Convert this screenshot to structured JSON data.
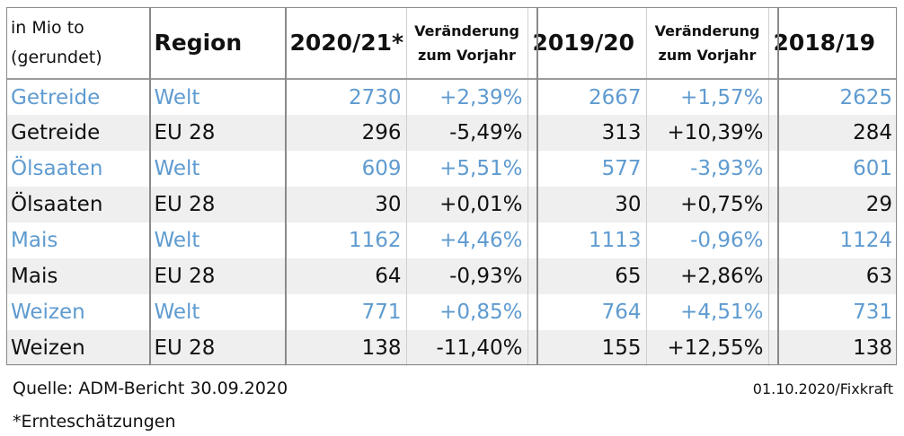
{
  "header": {
    "unit_line1": "in Mio to",
    "unit_line2": "(gerundet)",
    "region": "Region",
    "year1": "2020/21*",
    "change1_line1": "Veränderung",
    "change1_line2": "zum Vorjahr",
    "year2": "2019/20",
    "change2_line1": "Veränderung",
    "change2_line2": "zum Vorjahr",
    "year3": "2018/19"
  },
  "rows": [
    {
      "product": "Getreide",
      "region": "Welt",
      "y2021": "2730",
      "chg1": "+2,39%",
      "y2020": "2667",
      "chg2": "+1,57%",
      "y2019": "2625"
    },
    {
      "product": "Getreide",
      "region": "EU 28",
      "y2021": "296",
      "chg1": "-5,49%",
      "y2020": "313",
      "chg2": "+10,39%",
      "y2019": "284"
    },
    {
      "product": "Ölsaaten",
      "region": "Welt",
      "y2021": "609",
      "chg1": "+5,51%",
      "y2020": "577",
      "chg2": "-3,93%",
      "y2019": "601"
    },
    {
      "product": "Ölsaaten",
      "region": "EU 28",
      "y2021": "30",
      "chg1": "+0,01%",
      "y2020": "30",
      "chg2": "+0,75%",
      "y2019": "29"
    },
    {
      "product": "Mais",
      "region": "Welt",
      "y2021": "1162",
      "chg1": "+4,46%",
      "y2020": "1113",
      "chg2": "-0,96%",
      "y2019": "1124"
    },
    {
      "product": "Mais",
      "region": "EU 28",
      "y2021": "64",
      "chg1": "-0,93%",
      "y2020": "65",
      "chg2": "+2,86%",
      "y2019": "63"
    },
    {
      "product": "Weizen",
      "region": "Welt",
      "y2021": "771",
      "chg1": "+0,85%",
      "y2020": "764",
      "chg2": "+4,51%",
      "y2019": "731"
    },
    {
      "product": "Weizen",
      "region": "EU 28",
      "y2021": "138",
      "chg1": "-11,40%",
      "y2020": "155",
      "chg2": "+12,55%",
      "y2019": "138"
    }
  ],
  "colors": {
    "world_text": "#5f9bd0",
    "alt_row": "#efefef"
  },
  "footer": {
    "source": "Quelle: ADM-Bericht 30.09.2020",
    "date_credit": "01.10.2020/Fixkraft",
    "footnote": "*Ernteschätzungen"
  }
}
